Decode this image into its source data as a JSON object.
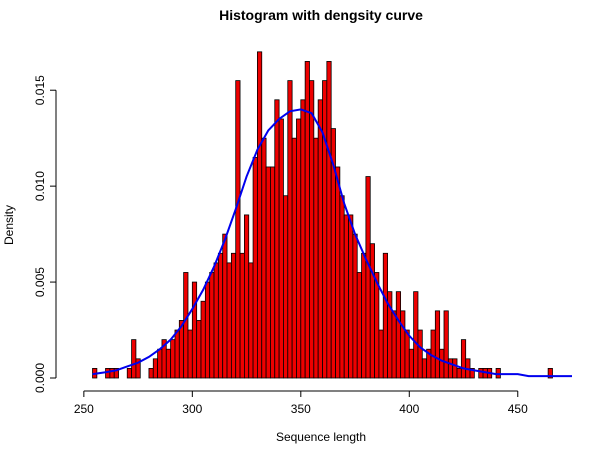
{
  "colors": {
    "bar_fill": "#ee0000",
    "bar_stroke": "#000000",
    "curve": "#0000ee"
  },
  "chart_data": {
    "type": "bar",
    "title": "Histogram with dengsity curve",
    "xlabel": "Sequence length",
    "ylabel": "Density",
    "xlim": [
      245,
      475
    ],
    "ylim": [
      0,
      0.0172
    ],
    "x_ticks": [
      250,
      300,
      350,
      400,
      450
    ],
    "x_tick_labels": [
      "250",
      "300",
      "350",
      "400",
      "450"
    ],
    "y_ticks": [
      0,
      0.005,
      0.01,
      0.015
    ],
    "y_tick_labels": [
      "0.000",
      "0.005",
      "0.010",
      "0.015"
    ],
    "grid": false,
    "bin_width": 2,
    "bins_start": [
      254,
      256,
      258,
      260,
      262,
      264,
      266,
      268,
      270,
      272,
      274,
      276,
      278,
      280,
      282,
      284,
      286,
      288,
      290,
      292,
      294,
      296,
      298,
      300,
      302,
      304,
      306,
      308,
      310,
      312,
      314,
      316,
      318,
      320,
      322,
      324,
      326,
      328,
      330,
      332,
      334,
      336,
      338,
      340,
      342,
      344,
      346,
      348,
      350,
      352,
      354,
      356,
      358,
      360,
      362,
      364,
      366,
      368,
      370,
      372,
      374,
      376,
      378,
      380,
      382,
      384,
      386,
      388,
      390,
      392,
      394,
      396,
      398,
      400,
      402,
      404,
      406,
      408,
      410,
      412,
      414,
      416,
      418,
      420,
      422,
      424,
      426,
      428,
      430,
      432,
      434,
      436,
      438,
      440,
      442,
      444,
      446,
      448,
      450,
      452,
      454,
      456,
      458,
      460,
      462,
      464
    ],
    "values": [
      0.0005,
      0,
      0,
      0.0005,
      0.0005,
      0.0005,
      0,
      0,
      0.0005,
      0.002,
      0.001,
      0,
      0,
      0.0005,
      0.001,
      0.0015,
      0.002,
      0.0015,
      0.002,
      0.0025,
      0.003,
      0.0055,
      0.0025,
      0.005,
      0.003,
      0.004,
      0.005,
      0.0055,
      0.006,
      0.0065,
      0.0075,
      0.006,
      0.0065,
      0.0155,
      0.0065,
      0.0085,
      0.006,
      0.0115,
      0.017,
      0.0125,
      0.011,
      0.011,
      0.0145,
      0.0135,
      0.0095,
      0.0155,
      0.0125,
      0.0135,
      0.0145,
      0.0165,
      0.0155,
      0.0125,
      0.0145,
      0.0155,
      0.0165,
      0.013,
      0.011,
      0.0095,
      0.0085,
      0.0085,
      0.0075,
      0.0055,
      0.0065,
      0.0105,
      0.007,
      0.0055,
      0.0025,
      0.0065,
      0.0045,
      0.0035,
      0.0045,
      0.0035,
      0.0025,
      0.0015,
      0.0045,
      0.0025,
      0.001,
      0.0015,
      0.0025,
      0.0035,
      0.0015,
      0.0035,
      0.001,
      0.001,
      0.0005,
      0.002,
      0.001,
      0.0005,
      0,
      0.0005,
      0.0005,
      0.0005,
      0,
      0.0005,
      0,
      0,
      0,
      0,
      0,
      0,
      0,
      0,
      0,
      0,
      0,
      0.0005
    ],
    "density_curve": {
      "x": [
        254,
        260,
        265,
        270,
        275,
        280,
        285,
        290,
        295,
        300,
        305,
        310,
        315,
        320,
        325,
        330,
        335,
        340,
        345,
        350,
        355,
        360,
        365,
        370,
        375,
        380,
        385,
        390,
        395,
        400,
        405,
        410,
        415,
        420,
        425,
        430,
        435,
        440,
        445,
        450,
        455,
        460,
        465,
        470,
        475
      ],
      "y": [
        0.0002,
        0.0003,
        0.0004,
        0.0006,
        0.0008,
        0.0011,
        0.0015,
        0.002,
        0.0027,
        0.0036,
        0.0046,
        0.0058,
        0.0072,
        0.0088,
        0.0105,
        0.0119,
        0.0129,
        0.0135,
        0.0139,
        0.014,
        0.0138,
        0.0128,
        0.0111,
        0.0091,
        0.0075,
        0.0062,
        0.005,
        0.0039,
        0.003,
        0.0022,
        0.0016,
        0.0012,
        0.0009,
        0.0007,
        0.0005,
        0.0004,
        0.0003,
        0.0002,
        0.0002,
        0.0002,
        0.0001,
        0.0001,
        0.0001,
        0.0001,
        0.0001
      ]
    }
  }
}
